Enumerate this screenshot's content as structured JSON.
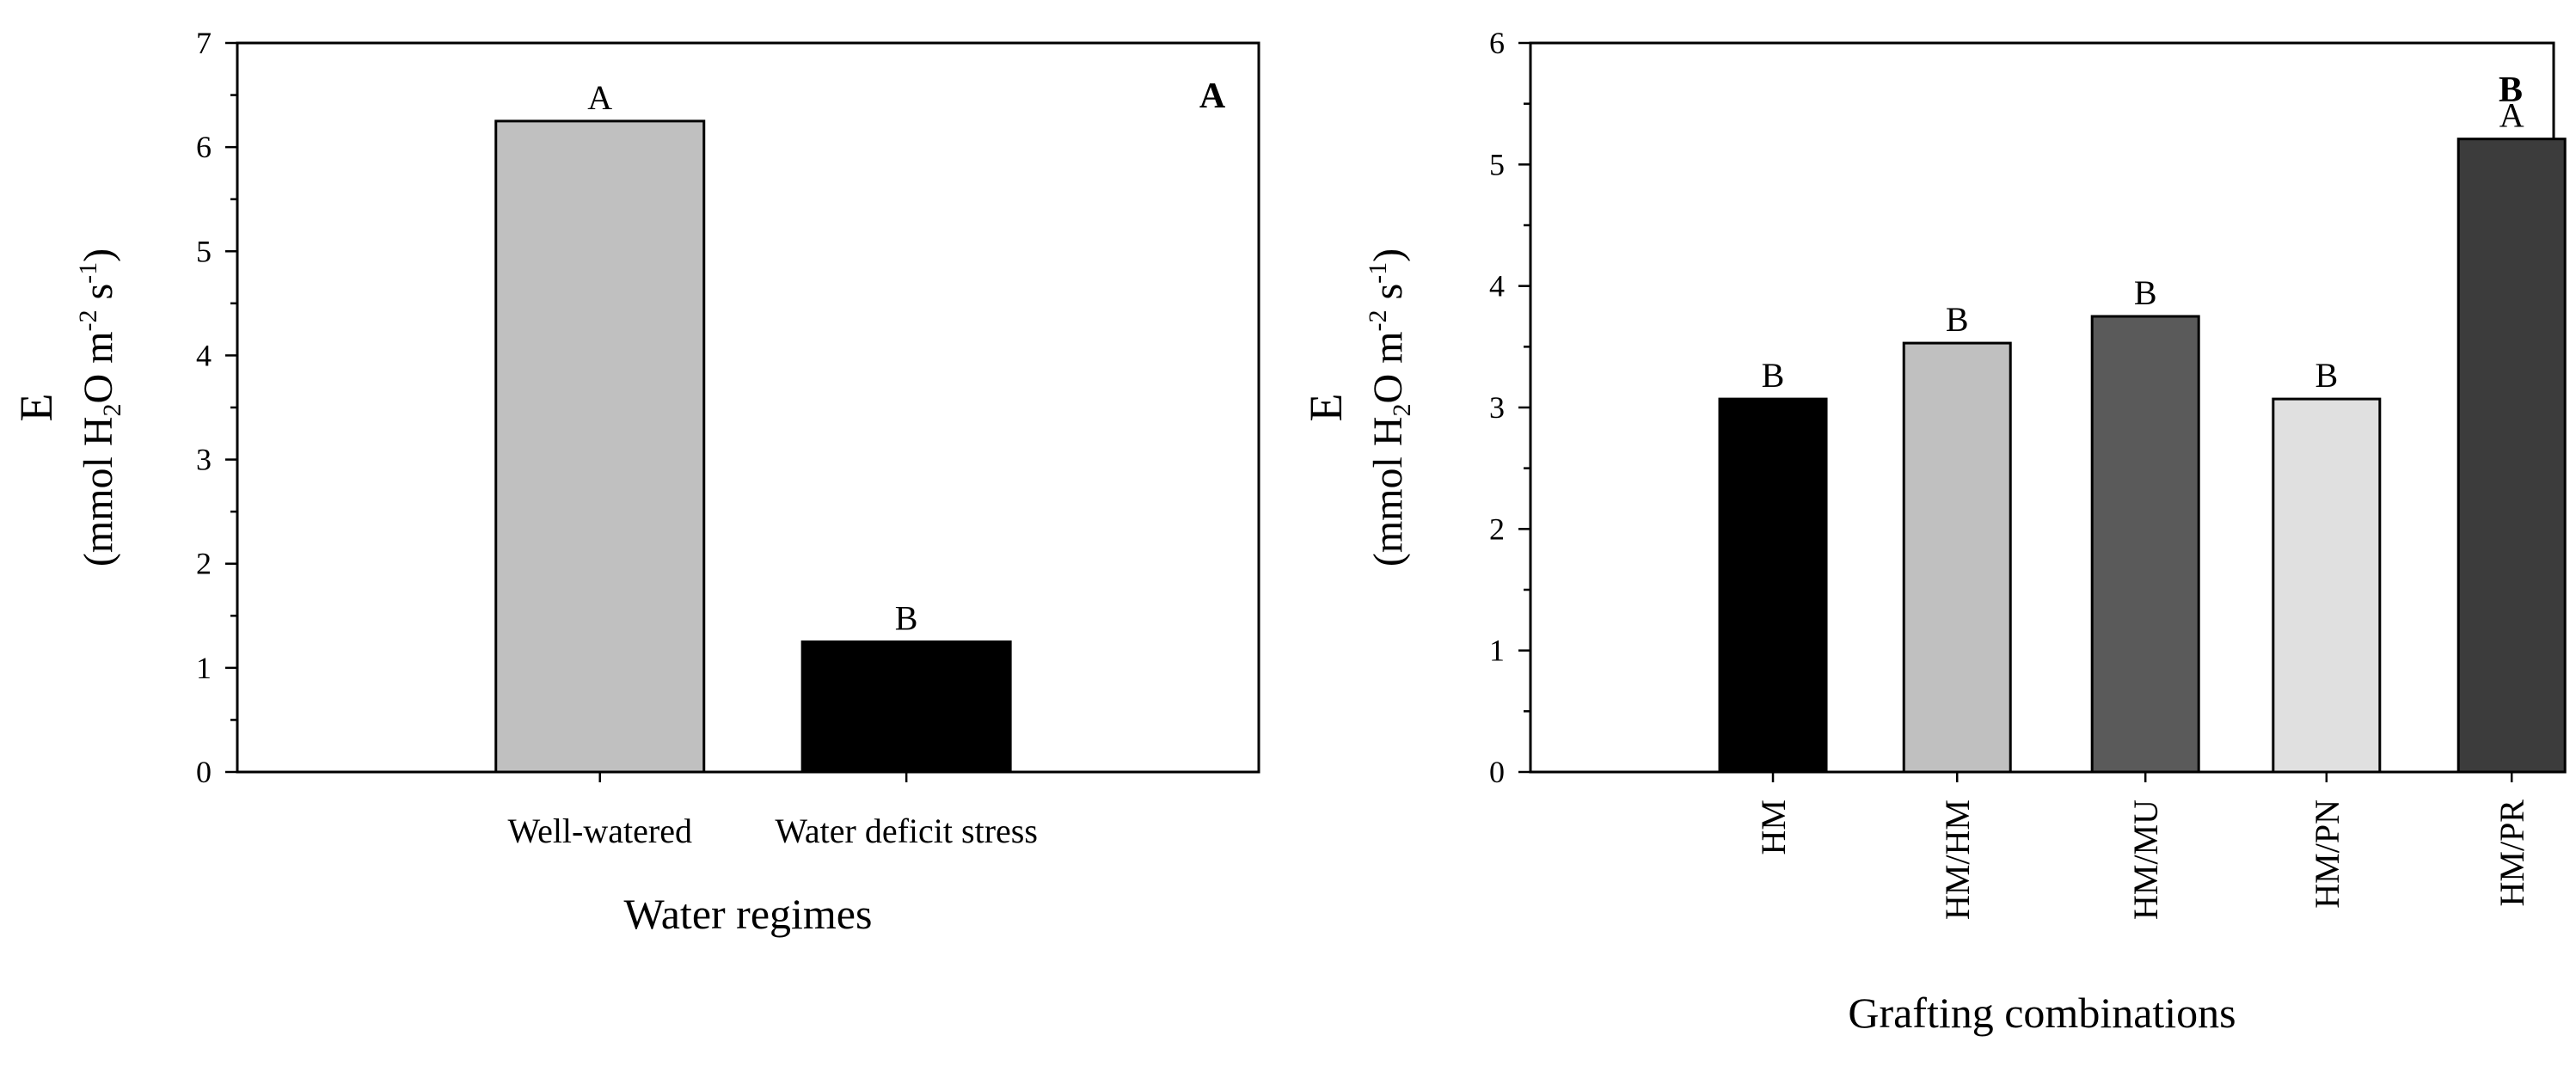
{
  "chart_data": [
    {
      "type": "bar",
      "panel_label": "A",
      "categories": [
        "Well-watered",
        "Water deficit stress"
      ],
      "values": [
        6.25,
        1.25
      ],
      "colors": [
        "#c0c0c0",
        "#000000"
      ],
      "significance": [
        "A",
        "B"
      ],
      "xlabel": "Water regimes",
      "ylabel": "E",
      "ylabel_units": {
        "prefix": "(mmol H",
        "sub": "2",
        "mid1": "O m",
        "sup1": "-2",
        "mid2": " s",
        "sup2": "-1",
        "suffix": ")"
      },
      "ylim": [
        0,
        7
      ],
      "yticks": [
        0,
        1,
        2,
        3,
        4,
        5,
        6,
        7
      ],
      "rotated_xticks": false
    },
    {
      "type": "bar",
      "panel_label": "B",
      "categories": [
        "HM",
        "HM/HM",
        "HM/MU",
        "HM/PN",
        "HM/PR"
      ],
      "values": [
        3.07,
        3.53,
        3.75,
        3.07,
        5.21
      ],
      "colors": [
        "#000000",
        "#c0c0c0",
        "#5a5a5a",
        "#e0e0e0",
        "#3c3c3c"
      ],
      "significance": [
        "B",
        "B",
        "B",
        "B",
        "A"
      ],
      "xlabel": "Grafting combinations",
      "ylabel": "E",
      "ylabel_units": {
        "prefix": "(mmol H",
        "sub": "2",
        "mid1": "O m",
        "sup1": "-2",
        "mid2": " s",
        "sup2": "-1",
        "suffix": ")"
      },
      "ylim": [
        0,
        6
      ],
      "yticks": [
        0,
        1,
        2,
        3,
        4,
        5,
        6
      ],
      "rotated_xticks": true
    }
  ]
}
